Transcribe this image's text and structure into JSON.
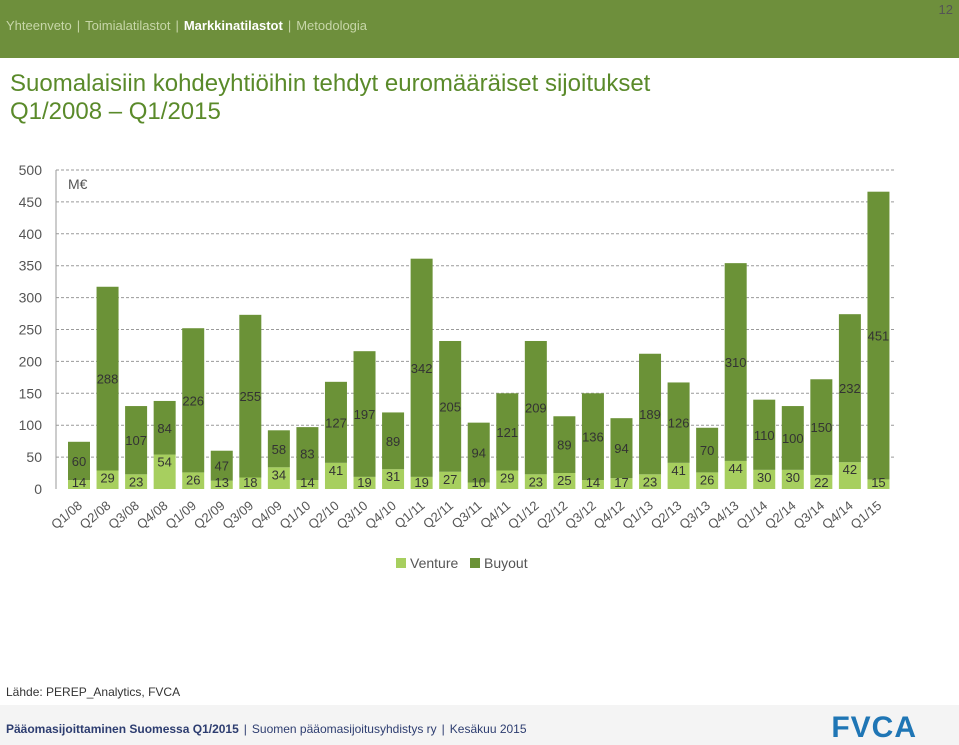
{
  "nav": {
    "items": [
      "Yhteenveto",
      "Toimialatilastot",
      "Markkinatilastot",
      "Metodologia"
    ],
    "active_index": 2
  },
  "page_number": "12",
  "title": {
    "line1": "Suomalaisiin kohdeyhtiöihin tehdyt euromääräiset sijoitukset",
    "line2": "Q1/2008 – Q1/2015"
  },
  "source": "Lähde: PEREP_Analytics, FVCA",
  "footer": {
    "bold": "Pääomasijoittaminen Suomessa Q1/2015",
    "org": "Suomen pääomasijoitusyhdistys ry",
    "date": "Kesäkuu 2015",
    "logo": "FVCA"
  },
  "colors": {
    "venture": "#a7cf5f",
    "buyout": "#6b9237",
    "accent": "#5a8a2a",
    "topbar": "#6e8f3c"
  },
  "chart_data": {
    "type": "bar",
    "stacked": true,
    "unit_label": "M€",
    "ylim": [
      0,
      500
    ],
    "yticks": [
      0,
      50,
      100,
      150,
      200,
      250,
      300,
      350,
      400,
      450,
      500
    ],
    "grid": true,
    "legend_position": "bottom",
    "categories": [
      "Q1/08",
      "Q2/08",
      "Q3/08",
      "Q4/08",
      "Q1/09",
      "Q2/09",
      "Q3/09",
      "Q4/09",
      "Q1/10",
      "Q2/10",
      "Q3/10",
      "Q4/10",
      "Q1/11",
      "Q2/11",
      "Q3/11",
      "Q4/11",
      "Q1/12",
      "Q2/12",
      "Q3/12",
      "Q4/12",
      "Q1/13",
      "Q2/13",
      "Q3/13",
      "Q4/13",
      "Q1/14",
      "Q2/14",
      "Q3/14",
      "Q4/14",
      "Q1/15"
    ],
    "series": [
      {
        "name": "Venture",
        "values": [
          14,
          29,
          23,
          54,
          26,
          13,
          18,
          34,
          14,
          41,
          19,
          31,
          19,
          27,
          10,
          29,
          23,
          25,
          14,
          17,
          23,
          41,
          26,
          44,
          30,
          30,
          22,
          42,
          15
        ]
      },
      {
        "name": "Buyout",
        "values": [
          60,
          288,
          107,
          84,
          226,
          47,
          255,
          58,
          83,
          127,
          197,
          89,
          342,
          205,
          94,
          121,
          209,
          89,
          136,
          94,
          189,
          126,
          70,
          310,
          110,
          100,
          150,
          232,
          451
        ]
      }
    ]
  }
}
